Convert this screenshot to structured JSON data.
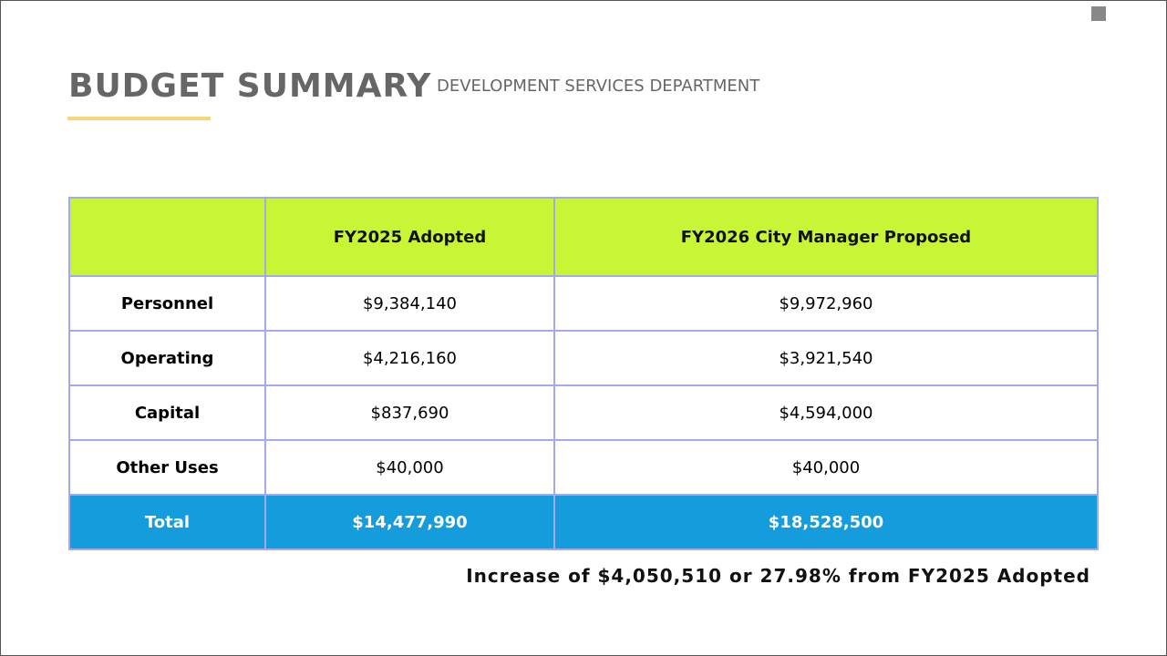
{
  "header": {
    "title": "BUDGET SUMMARY",
    "subtitle": "DEVELOPMENT SERVICES DEPARTMENT"
  },
  "table": {
    "columns": [
      "",
      "FY2025 Adopted",
      "FY2026 City Manager Proposed"
    ],
    "rows": [
      [
        "Personnel",
        "$9,384,140",
        "$9,972,960"
      ],
      [
        "Operating",
        "$4,216,160",
        "$3,921,540"
      ],
      [
        "Capital",
        "$837,690",
        "$4,594,000"
      ],
      [
        "Other Uses",
        "$40,000",
        "$40,000"
      ]
    ],
    "total": [
      "Total",
      "$14,477,990",
      "$18,528,500"
    ]
  },
  "note": "Increase of $4,050,510 or 27.98% from FY2025 Adopted"
}
